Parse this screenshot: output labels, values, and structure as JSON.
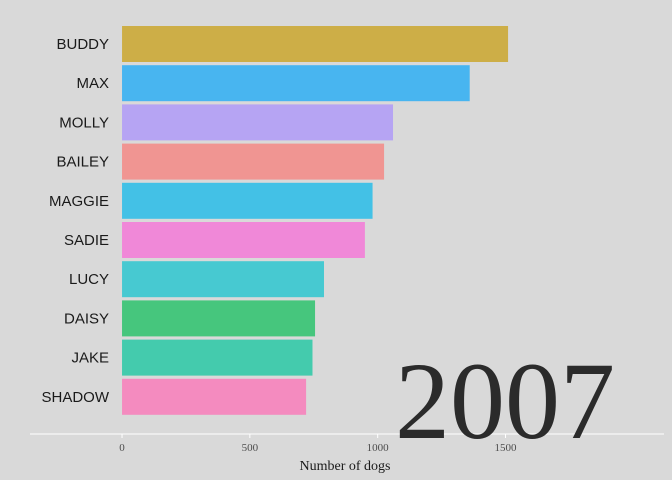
{
  "chart_data": {
    "type": "bar",
    "orientation": "horizontal",
    "categories": [
      "BUDDY",
      "MAX",
      "MOLLY",
      "BAILEY",
      "MAGGIE",
      "SADIE",
      "LUCY",
      "DAISY",
      "JAKE",
      "SHADOW"
    ],
    "values": [
      1510,
      1360,
      1060,
      1025,
      980,
      950,
      790,
      755,
      745,
      720
    ],
    "colors": [
      "#cdae47",
      "#48b5f0",
      "#b6a4f3",
      "#f09592",
      "#43c1e6",
      "#f088d8",
      "#47c9d1",
      "#46c67d",
      "#44cbad",
      "#f48bbf"
    ],
    "xlabel": "Number of dogs",
    "xticks": [
      0,
      500,
      1000,
      1500
    ],
    "xlim": [
      -360,
      2120
    ],
    "annotation": "2007",
    "background": "#d9d9d9",
    "grid": false
  }
}
